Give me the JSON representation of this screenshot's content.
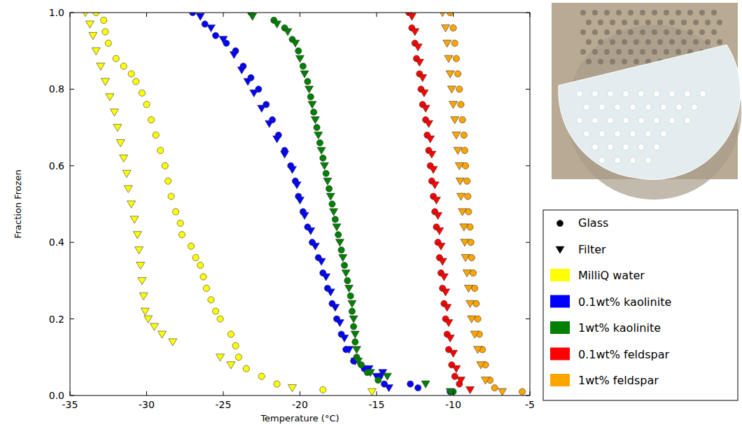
{
  "chart_data": {
    "type": "scatter",
    "x_label": "Temperature (°C)",
    "y_label": "Fraction Frozen",
    "xlim": [
      -35,
      -5
    ],
    "xticks": [
      -35,
      -30,
      -25,
      -20,
      -15,
      -10,
      -5
    ],
    "ylim": [
      0,
      1
    ],
    "yticks": [
      {
        "value": 0,
        "label": "0.0"
      },
      0.2,
      0.4,
      0.6,
      0.8,
      {
        "value": 1,
        "label": "1.0"
      }
    ],
    "grid": false,
    "legend": "right",
    "marker_legend": [
      {
        "name": "Glass",
        "marker": "circle"
      },
      {
        "name": "Filter",
        "marker": "triangle_down"
      }
    ],
    "series": [
      {
        "name": "MilliQ water",
        "color": "#ffff00",
        "marker": "circle",
        "x": [
          -33.3,
          -32.8,
          -32.7,
          -32.5,
          -32.0,
          -31.5,
          -31.0,
          -30.7,
          -30.3,
          -30.0,
          -29.7,
          -29.4,
          -29.1,
          -28.8,
          -28.6,
          -28.4,
          -28.1,
          -27.8,
          -27.7,
          -27.1,
          -26.8,
          -26.5,
          -26.3,
          -26.1,
          -25.8,
          -25.5,
          -25.2,
          -24.5,
          -24.2,
          -24.0,
          -23.5,
          -22.5,
          -21.5,
          -18.5
        ],
        "values": [
          1.0,
          0.98,
          0.95,
          0.92,
          0.88,
          0.86,
          0.84,
          0.82,
          0.79,
          0.76,
          0.72,
          0.68,
          0.64,
          0.6,
          0.56,
          0.52,
          0.48,
          0.45,
          0.42,
          0.39,
          0.36,
          0.34,
          0.31,
          0.28,
          0.25,
          0.22,
          0.2,
          0.16,
          0.13,
          0.1,
          0.07,
          0.05,
          0.03,
          0.015
        ]
      },
      {
        "name": "MilliQ water",
        "color": "#ffff00",
        "marker": "triangle_down",
        "x": [
          -34.0,
          -33.7,
          -33.5,
          -33.3,
          -33.0,
          -32.7,
          -32.4,
          -32.1,
          -31.9,
          -31.7,
          -31.5,
          -31.3,
          -31.2,
          -31.0,
          -30.8,
          -30.6,
          -30.5,
          -30.4,
          -30.3,
          -30.2,
          -30.1,
          -29.9,
          -29.5,
          -29.0,
          -28.3,
          -25.2,
          -24.5,
          -20.5,
          -15.3
        ],
        "values": [
          1.0,
          0.97,
          0.94,
          0.9,
          0.86,
          0.82,
          0.78,
          0.74,
          0.7,
          0.66,
          0.62,
          0.58,
          0.54,
          0.5,
          0.46,
          0.42,
          0.38,
          0.34,
          0.3,
          0.26,
          0.22,
          0.2,
          0.18,
          0.16,
          0.14,
          0.1,
          0.08,
          0.02,
          0.01
        ]
      },
      {
        "name": "0.1wt% kaolinite",
        "color": "#0000ff",
        "marker": "circle",
        "x": [
          -27.0,
          -26.2,
          -25.5,
          -24.8,
          -24.2,
          -23.7,
          -23.2,
          -22.7,
          -22.2,
          -21.8,
          -21.4,
          -21.0,
          -20.6,
          -20.3,
          -20.1,
          -19.8,
          -19.5,
          -19.2,
          -18.8,
          -18.5,
          -18.2,
          -17.9,
          -17.6,
          -17.3,
          -17.0,
          -16.5,
          -15.8,
          -14.8,
          -14.5,
          -12.8,
          -12.3,
          -10.2
        ],
        "values": [
          1.0,
          0.97,
          0.94,
          0.92,
          0.9,
          0.86,
          0.83,
          0.8,
          0.76,
          0.72,
          0.68,
          0.64,
          0.6,
          0.56,
          0.52,
          0.48,
          0.44,
          0.4,
          0.36,
          0.32,
          0.28,
          0.24,
          0.2,
          0.16,
          0.12,
          0.09,
          0.07,
          0.05,
          0.03,
          0.03,
          0.02,
          0.01
        ]
      },
      {
        "name": "0.1wt% kaolinite",
        "color": "#0000ff",
        "marker": "triangle_down",
        "x": [
          -26.5,
          -25.8,
          -25.0,
          -24.3,
          -23.8,
          -23.4,
          -23.0,
          -22.5,
          -22.0,
          -21.5,
          -21.0,
          -20.5,
          -20.2,
          -20.0,
          -19.7,
          -19.3,
          -19.0,
          -18.6,
          -18.3,
          -18.0,
          -17.7,
          -17.4,
          -17.1,
          -16.8,
          -16.4,
          -15.5,
          -15.0,
          -14.6,
          -14.2
        ],
        "values": [
          0.99,
          0.96,
          0.93,
          0.89,
          0.85,
          0.82,
          0.79,
          0.75,
          0.71,
          0.67,
          0.63,
          0.59,
          0.55,
          0.51,
          0.47,
          0.43,
          0.39,
          0.35,
          0.31,
          0.27,
          0.23,
          0.19,
          0.15,
          0.12,
          0.09,
          0.07,
          0.05,
          0.06,
          0.02
        ]
      },
      {
        "name": "1wt% kaolinite",
        "color": "#008000",
        "marker": "circle",
        "x": [
          -23.2,
          -21.7,
          -21.0,
          -20.5,
          -20.1,
          -19.8,
          -19.5,
          -19.3,
          -19.1,
          -18.9,
          -18.7,
          -18.5,
          -18.3,
          -18.1,
          -17.9,
          -17.7,
          -17.5,
          -17.3,
          -17.1,
          -16.9,
          -16.7,
          -16.6,
          -16.5,
          -16.4,
          -16.3,
          -16.0,
          -15.6,
          -14.9,
          -10.0
        ],
        "values": [
          1.0,
          0.98,
          0.96,
          0.93,
          0.9,
          0.86,
          0.82,
          0.78,
          0.74,
          0.7,
          0.66,
          0.62,
          0.58,
          0.54,
          0.5,
          0.46,
          0.42,
          0.38,
          0.34,
          0.3,
          0.26,
          0.22,
          0.18,
          0.14,
          0.1,
          0.08,
          0.06,
          0.04,
          0.01
        ]
      },
      {
        "name": "1wt% kaolinite",
        "color": "#008000",
        "marker": "triangle_down",
        "x": [
          -23.1,
          -21.5,
          -20.8,
          -20.3,
          -20.0,
          -19.7,
          -19.4,
          -19.2,
          -19.0,
          -18.8,
          -18.6,
          -18.4,
          -18.2,
          -18.0,
          -17.8,
          -17.6,
          -17.4,
          -17.2,
          -17.0,
          -16.8,
          -16.6,
          -16.5,
          -16.4,
          -16.3,
          -16.2,
          -15.4,
          -14.3,
          -11.8,
          -10.2
        ],
        "values": [
          0.99,
          0.97,
          0.95,
          0.92,
          0.88,
          0.84,
          0.8,
          0.76,
          0.72,
          0.68,
          0.64,
          0.6,
          0.56,
          0.52,
          0.48,
          0.44,
          0.4,
          0.36,
          0.32,
          0.28,
          0.24,
          0.2,
          0.16,
          0.12,
          0.09,
          0.06,
          0.05,
          0.03,
          0.01
        ]
      },
      {
        "name": "0.1wt% feldspar",
        "color": "#ff0000",
        "marker": "circle",
        "x": [
          -12.9,
          -12.7,
          -12.5,
          -12.4,
          -12.2,
          -12.1,
          -12.0,
          -11.8,
          -11.7,
          -11.6,
          -11.5,
          -11.4,
          -11.3,
          -11.2,
          -11.1,
          -11.0,
          -10.9,
          -10.8,
          -10.7,
          -10.6,
          -10.5,
          -10.4,
          -10.3,
          -10.1,
          -9.9,
          -9.6
        ],
        "values": [
          1.0,
          0.96,
          0.92,
          0.88,
          0.84,
          0.8,
          0.76,
          0.72,
          0.68,
          0.64,
          0.6,
          0.56,
          0.52,
          0.48,
          0.44,
          0.4,
          0.36,
          0.32,
          0.28,
          0.24,
          0.2,
          0.16,
          0.12,
          0.08,
          0.05,
          0.03
        ]
      },
      {
        "name": "0.1wt% feldspar",
        "color": "#ff0000",
        "marker": "triangle_down",
        "x": [
          -12.7,
          -12.5,
          -12.3,
          -12.2,
          -12.0,
          -11.9,
          -11.8,
          -11.6,
          -11.5,
          -11.4,
          -11.3,
          -11.2,
          -11.1,
          -11.0,
          -10.9,
          -10.8,
          -10.7,
          -10.6,
          -10.5,
          -10.4,
          -10.3,
          -10.2,
          -10.0,
          -9.8,
          -9.5,
          -8.9
        ],
        "values": [
          0.99,
          0.95,
          0.91,
          0.87,
          0.83,
          0.79,
          0.75,
          0.71,
          0.67,
          0.63,
          0.59,
          0.55,
          0.51,
          0.47,
          0.43,
          0.39,
          0.35,
          0.31,
          0.27,
          0.23,
          0.19,
          0.15,
          0.11,
          0.07,
          0.04,
          0.015
        ]
      },
      {
        "name": "1wt% feldspar",
        "color": "#ffa500",
        "marker": "circle",
        "x": [
          -10.2,
          -10.0,
          -9.9,
          -9.8,
          -9.7,
          -9.6,
          -9.5,
          -9.4,
          -9.3,
          -9.25,
          -9.2,
          -9.1,
          -9.05,
          -9.0,
          -8.9,
          -8.85,
          -8.8,
          -8.7,
          -8.6,
          -8.5,
          -8.4,
          -8.3,
          -8.1,
          -7.9,
          -7.6,
          -7.3,
          -5.5
        ],
        "values": [
          1.0,
          0.96,
          0.92,
          0.88,
          0.84,
          0.8,
          0.76,
          0.72,
          0.68,
          0.64,
          0.6,
          0.56,
          0.52,
          0.48,
          0.44,
          0.4,
          0.36,
          0.32,
          0.28,
          0.24,
          0.2,
          0.16,
          0.12,
          0.08,
          0.04,
          0.02,
          0.01
        ]
      },
      {
        "name": "1wt% feldspar",
        "color": "#ffa500",
        "marker": "triangle_down",
        "x": [
          -10.7,
          -10.5,
          -10.4,
          -10.3,
          -10.2,
          -10.1,
          -10.0,
          -9.9,
          -9.8,
          -9.7,
          -9.6,
          -9.55,
          -9.5,
          -9.4,
          -9.3,
          -9.25,
          -9.2,
          -9.1,
          -9.0,
          -8.9,
          -8.8,
          -8.6,
          -8.4,
          -8.2,
          -7.9,
          -6.8
        ],
        "values": [
          1.0,
          0.96,
          0.92,
          0.88,
          0.84,
          0.8,
          0.76,
          0.72,
          0.68,
          0.64,
          0.6,
          0.56,
          0.52,
          0.48,
          0.44,
          0.4,
          0.36,
          0.32,
          0.28,
          0.24,
          0.2,
          0.16,
          0.12,
          0.08,
          0.04,
          0.01
        ]
      }
    ]
  }
}
